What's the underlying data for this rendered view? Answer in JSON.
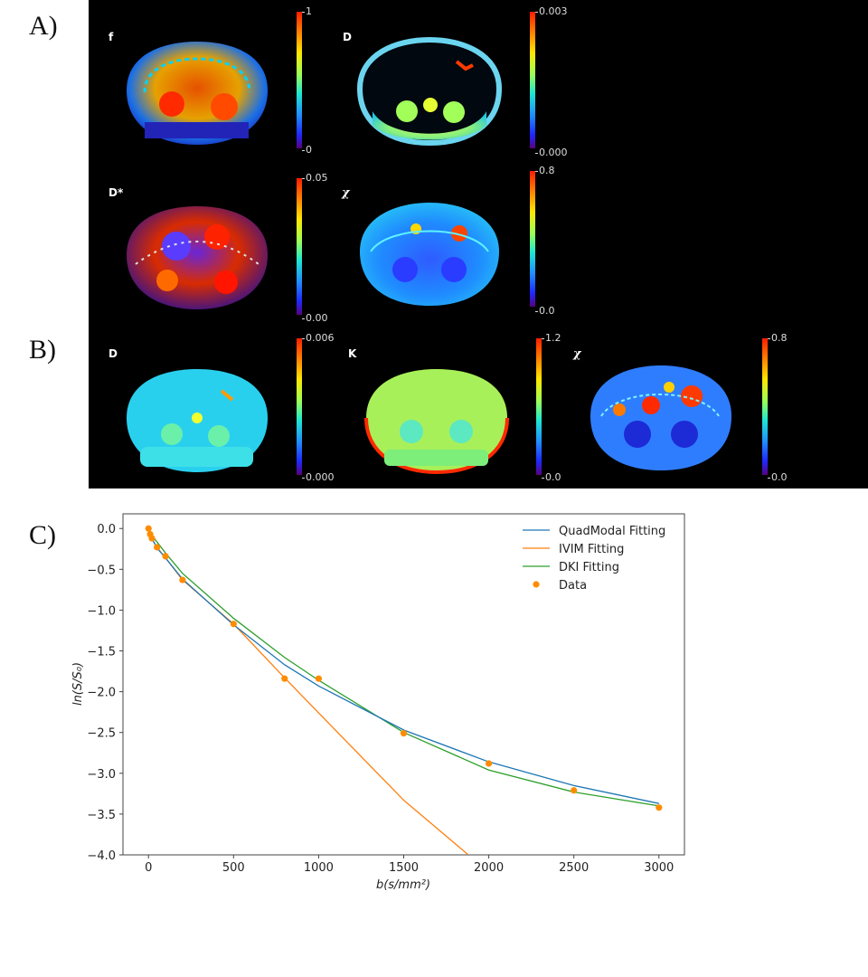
{
  "panels": {
    "a": "A)",
    "b": "B)",
    "c": "C)"
  },
  "maps_a": [
    {
      "label": "f",
      "cb_max": "1",
      "cb_min": "0"
    },
    {
      "label": "D",
      "cb_max": "0.003",
      "cb_min": "0.000"
    },
    {
      "label": "D*",
      "cb_max": "0.05",
      "cb_min": "0.00"
    },
    {
      "label": "χ",
      "cb_max": "0.8",
      "cb_min": "0.0"
    }
  ],
  "maps_b": [
    {
      "label": "D",
      "cb_max": "0.006",
      "cb_min": "0.000"
    },
    {
      "label": "K",
      "cb_max": "1.2",
      "cb_min": "0.0"
    },
    {
      "label": "χ",
      "cb_max": "0.8",
      "cb_min": "0.0"
    }
  ],
  "colors": {
    "quad": "#1f77b4",
    "ivim": "#ff7f0e",
    "dki": "#2ca02c",
    "data": "#ff8c00"
  },
  "chart_data": {
    "type": "line",
    "xlabel": "b(s/mm²)",
    "ylabel": "ln(S/S₀)",
    "xlim": [
      -150,
      3150
    ],
    "ylim": [
      -4.0,
      0.18
    ],
    "xticks": [
      0,
      500,
      1000,
      1500,
      2000,
      2500,
      3000
    ],
    "yticks": [
      0.0,
      -0.5,
      -1.0,
      -1.5,
      -2.0,
      -2.5,
      -3.0,
      -3.5,
      -4.0
    ],
    "xtick_labels": [
      "0",
      "500",
      "1000",
      "1500",
      "2000",
      "2500",
      "3000"
    ],
    "ytick_labels": [
      "0.0",
      "−0.5",
      "−1.0",
      "−1.5",
      "−2.0",
      "−2.5",
      "−3.0",
      "−3.5",
      "−4.0"
    ],
    "legend": [
      "QuadModal Fitting",
      "IVIM Fitting",
      "DKI Fitting",
      "Data"
    ],
    "legend_position": "top-right",
    "series": [
      {
        "name": "QuadModal Fitting",
        "x": [
          0,
          10,
          20,
          50,
          100,
          200,
          500,
          800,
          1000,
          1500,
          2000,
          2500,
          3000
        ],
        "y": [
          0.0,
          -0.07,
          -0.12,
          -0.24,
          -0.36,
          -0.62,
          -1.18,
          -1.67,
          -1.93,
          -2.47,
          -2.86,
          -3.15,
          -3.37
        ]
      },
      {
        "name": "IVIM Fitting",
        "x": [
          0,
          10,
          20,
          50,
          100,
          200,
          500,
          800,
          1000,
          1500,
          1880
        ],
        "y": [
          0.0,
          -0.08,
          -0.13,
          -0.23,
          -0.36,
          -0.63,
          -1.17,
          -1.83,
          -2.26,
          -3.33,
          -4.0
        ]
      },
      {
        "name": "DKI Fitting",
        "x": [
          0,
          100,
          200,
          500,
          800,
          1000,
          1500,
          2000,
          2500,
          3000
        ],
        "y": [
          -0.03,
          -0.3,
          -0.55,
          -1.1,
          -1.58,
          -1.86,
          -2.5,
          -2.96,
          -3.23,
          -3.4
        ]
      },
      {
        "name": "Data",
        "x": [
          0,
          10,
          20,
          50,
          100,
          200,
          500,
          800,
          1000,
          1500,
          2000,
          2500,
          3000
        ],
        "y": [
          0.0,
          -0.07,
          -0.12,
          -0.23,
          -0.34,
          -0.63,
          -1.17,
          -1.84,
          -1.84,
          -2.51,
          -2.88,
          -3.21,
          -3.42
        ]
      }
    ]
  }
}
